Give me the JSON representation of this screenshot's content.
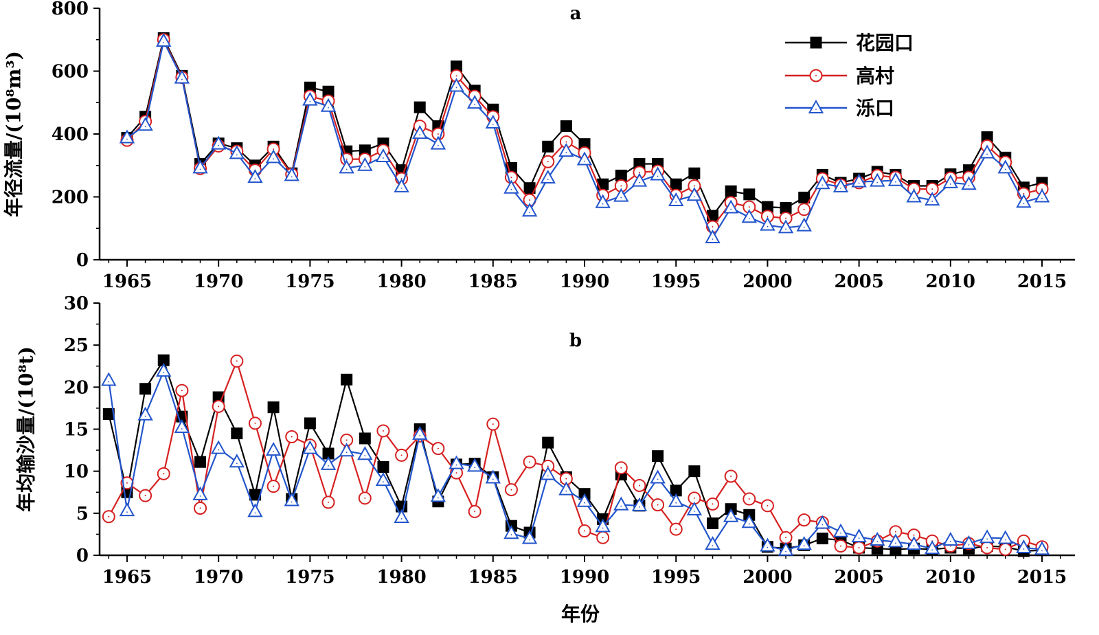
{
  "chart_data": [
    {
      "panel": "a",
      "type": "line",
      "ylabel": "年径流量/(10⁸m³)",
      "ylim": [
        0,
        800
      ],
      "yticks": [
        0,
        200,
        400,
        600,
        800
      ],
      "xlim": [
        1963.5,
        2016.8
      ],
      "xticks": [
        1965,
        1970,
        1975,
        1980,
        1985,
        1990,
        1995,
        2000,
        2005,
        2010,
        2015
      ],
      "legend": "top-right",
      "x": [
        1965,
        1966,
        1967,
        1968,
        1969,
        1970,
        1971,
        1972,
        1973,
        1974,
        1975,
        1976,
        1977,
        1978,
        1979,
        1980,
        1981,
        1982,
        1983,
        1984,
        1985,
        1986,
        1987,
        1988,
        1989,
        1990,
        1991,
        1992,
        1993,
        1994,
        1995,
        1996,
        1997,
        1998,
        1999,
        2000,
        2001,
        2002,
        2003,
        2004,
        2005,
        2006,
        2007,
        2008,
        2009,
        2010,
        2011,
        2012,
        2013,
        2014,
        2015
      ],
      "series": [
        {
          "name": "花园口",
          "color": "#000000",
          "marker": "square",
          "values": [
            388,
            455,
            705,
            585,
            305,
            370,
            355,
            300,
            360,
            275,
            548,
            535,
            345,
            348,
            370,
            285,
            485,
            425,
            615,
            538,
            478,
            292,
            228,
            360,
            425,
            368,
            240,
            268,
            305,
            305,
            240,
            275,
            140,
            218,
            208,
            168,
            165,
            198,
            270,
            245,
            258,
            280,
            270,
            235,
            235,
            272,
            285,
            390,
            325,
            230,
            245
          ]
        },
        {
          "name": "高村",
          "color": "#d62020",
          "marker": "circle",
          "values": [
            380,
            440,
            700,
            580,
            290,
            362,
            345,
            285,
            352,
            272,
            520,
            505,
            320,
            320,
            348,
            258,
            425,
            400,
            585,
            520,
            455,
            262,
            190,
            312,
            375,
            340,
            205,
            235,
            278,
            282,
            205,
            235,
            105,
            182,
            168,
            138,
            132,
            160,
            258,
            238,
            245,
            268,
            262,
            225,
            225,
            260,
            262,
            362,
            310,
            210,
            225
          ]
        },
        {
          "name": "泺口",
          "color": "#2255cc",
          "marker": "triangle",
          "values": [
            388,
            428,
            695,
            578,
            292,
            368,
            338,
            262,
            325,
            268,
            508,
            488,
            292,
            300,
            328,
            232,
            402,
            368,
            552,
            498,
            435,
            228,
            155,
            260,
            345,
            318,
            182,
            202,
            250,
            270,
            188,
            205,
            70,
            165,
            135,
            110,
            102,
            108,
            242,
            232,
            248,
            250,
            252,
            200,
            190,
            245,
            240,
            340,
            292,
            183,
            200
          ]
        }
      ]
    },
    {
      "panel": "b",
      "type": "line",
      "ylabel": "年均输沙量/(10⁸t)",
      "xlabel": "年份",
      "ylim": [
        0,
        30
      ],
      "yticks": [
        0,
        5,
        10,
        15,
        20,
        25,
        30
      ],
      "xlim": [
        1963.5,
        2016.8
      ],
      "xticks": [
        1965,
        1970,
        1975,
        1980,
        1985,
        1990,
        1995,
        2000,
        2005,
        2010,
        2015
      ],
      "x": [
        1964,
        1965,
        1966,
        1967,
        1968,
        1969,
        1970,
        1971,
        1972,
        1973,
        1974,
        1975,
        1976,
        1977,
        1978,
        1979,
        1980,
        1981,
        1982,
        1983,
        1984,
        1985,
        1986,
        1987,
        1988,
        1989,
        1990,
        1991,
        1992,
        1993,
        1994,
        1995,
        1996,
        1997,
        1998,
        1999,
        2000,
        2001,
        2002,
        2003,
        2004,
        2005,
        2006,
        2007,
        2008,
        2009,
        2010,
        2011,
        2012,
        2013,
        2014,
        2015
      ],
      "series": [
        {
          "name": "花园口",
          "color": "#000000",
          "marker": "square",
          "values": [
            16.8,
            7.5,
            19.8,
            23.2,
            16.5,
            11.1,
            18.8,
            14.5,
            7.2,
            17.6,
            6.7,
            15.7,
            12.1,
            20.9,
            13.9,
            10.5,
            5.8,
            15.0,
            6.4,
            10.8,
            10.9,
            9.3,
            3.5,
            2.7,
            13.4,
            9.3,
            7.3,
            4.3,
            9.6,
            5.9,
            11.8,
            7.7,
            10.0,
            3.8,
            5.5,
            4.8,
            1.0,
            0.8,
            1.2,
            2.0,
            1.8,
            0.9,
            0.8,
            0.7,
            0.8,
            0.7,
            0.9,
            0.8,
            1.1,
            1.0,
            0.5,
            0.6
          ]
        },
        {
          "name": "高村",
          "color": "#d62020",
          "marker": "circle",
          "values": [
            4.6,
            8.6,
            7.1,
            9.7,
            19.6,
            5.6,
            17.7,
            23.1,
            15.7,
            8.2,
            14.1,
            13.1,
            6.3,
            13.7,
            6.8,
            14.8,
            11.9,
            14.2,
            12.7,
            9.8,
            5.2,
            15.6,
            7.8,
            11.1,
            10.6,
            9.1,
            2.9,
            2.1,
            10.4,
            8.3,
            6.0,
            3.1,
            6.8,
            6.1,
            9.4,
            6.7,
            5.9,
            2.1,
            4.2,
            3.9,
            1.1,
            0.9,
            1.7,
            2.8,
            2.4,
            1.7,
            1.1,
            1.4,
            0.9,
            0.7,
            1.7,
            1.0
          ]
        },
        {
          "name": "泺口",
          "color": "#2255cc",
          "marker": "triangle",
          "values": [
            20.8,
            5.3,
            16.7,
            21.9,
            15.2,
            7.2,
            12.7,
            11.1,
            5.2,
            12.5,
            6.5,
            12.7,
            10.8,
            12.4,
            12.0,
            8.9,
            4.5,
            14.4,
            7.0,
            10.9,
            10.6,
            9.2,
            2.6,
            2.0,
            9.6,
            7.8,
            6.4,
            3.4,
            6.0,
            5.9,
            9.2,
            6.4,
            5.4,
            1.3,
            4.6,
            3.9,
            1.1,
            0.6,
            1.3,
            3.8,
            2.8,
            2.2,
            1.8,
            1.6,
            1.3,
            0.8,
            1.8,
            1.4,
            2.1,
            2.0,
            0.9,
            0.7
          ]
        }
      ]
    }
  ]
}
